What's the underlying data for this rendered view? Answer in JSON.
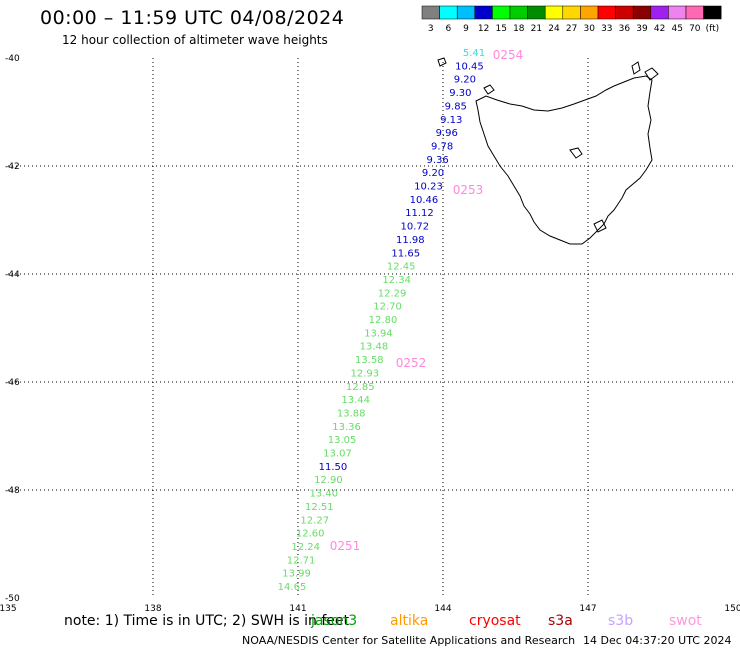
{
  "header": {
    "title": "00:00 – 11:59 UTC 04/08/2024",
    "subtitle": "12 hour collection of altimeter wave heights"
  },
  "legend": {
    "colors": [
      "#808080",
      "#00ffff",
      "#00bfff",
      "#0000cd",
      "#00ff00",
      "#00cd00",
      "#008b00",
      "#ffff00",
      "#ffd700",
      "#ffa500",
      "#ff0000",
      "#cd0000",
      "#8b0000",
      "#a020f0",
      "#ee82ee",
      "#ff69b4",
      "#000000"
    ],
    "labels": [
      "3",
      "6",
      "9",
      "12",
      "15",
      "18",
      "21",
      "24",
      "27",
      "30",
      "33",
      "36",
      "39",
      "42",
      "45",
      "70",
      "(ft)"
    ]
  },
  "axes": {
    "lat_labels": [
      "-40",
      "-42",
      "-44",
      "-46",
      "-48",
      "-50"
    ],
    "lon_labels": [
      "135",
      "138",
      "141",
      "144",
      "147",
      "150"
    ]
  },
  "track": {
    "blue_color": "#0000cd",
    "green_color": "#66dd66",
    "readings": [
      {
        "v": "5.41",
        "c": "cyan"
      },
      {
        "v": "10.45",
        "c": "blue"
      },
      {
        "v": "9.20",
        "c": "blue"
      },
      {
        "v": "9.30",
        "c": "blue"
      },
      {
        "v": "9.85",
        "c": "blue"
      },
      {
        "v": "9.13",
        "c": "blue"
      },
      {
        "v": "9.96",
        "c": "blue"
      },
      {
        "v": "9.78",
        "c": "blue"
      },
      {
        "v": "9.36",
        "c": "blue"
      },
      {
        "v": "9.20",
        "c": "blue"
      },
      {
        "v": "10.23",
        "c": "blue"
      },
      {
        "v": "10.46",
        "c": "blue"
      },
      {
        "v": "11.12",
        "c": "blue"
      },
      {
        "v": "10.72",
        "c": "blue"
      },
      {
        "v": "11.98",
        "c": "blue"
      },
      {
        "v": "11.65",
        "c": "blue"
      },
      {
        "v": "12.45",
        "c": "green"
      },
      {
        "v": "12.34",
        "c": "green"
      },
      {
        "v": "12.29",
        "c": "green"
      },
      {
        "v": "12.70",
        "c": "green"
      },
      {
        "v": "12.80",
        "c": "green"
      },
      {
        "v": "13.94",
        "c": "green"
      },
      {
        "v": "13.48",
        "c": "green"
      },
      {
        "v": "13.58",
        "c": "green"
      },
      {
        "v": "12.93",
        "c": "green"
      },
      {
        "v": "12.85",
        "c": "green"
      },
      {
        "v": "13.44",
        "c": "green"
      },
      {
        "v": "13.88",
        "c": "green"
      },
      {
        "v": "13.36",
        "c": "green"
      },
      {
        "v": "13.05",
        "c": "green"
      },
      {
        "v": "13.07",
        "c": "green"
      },
      {
        "v": "11.50",
        "c": "blue"
      },
      {
        "v": "12.90",
        "c": "green"
      },
      {
        "v": "13.40",
        "c": "green"
      },
      {
        "v": "12.51",
        "c": "green"
      },
      {
        "v": "12.27",
        "c": "green"
      },
      {
        "v": "12.60",
        "c": "green"
      },
      {
        "v": "12.24",
        "c": "green"
      },
      {
        "v": "12.71",
        "c": "green"
      },
      {
        "v": "13.99",
        "c": "green"
      },
      {
        "v": "14.65",
        "c": "green"
      }
    ],
    "times": [
      "0254",
      "0253",
      "0252",
      "0251"
    ],
    "time_color": "#ff88dd"
  },
  "footer": {
    "note": "note: 1) Time is in UTC; 2) SWH is in feet",
    "satellites": [
      {
        "name": "jason3",
        "color": "#00a000"
      },
      {
        "name": "altika",
        "color": "#ff9900"
      },
      {
        "name": "cryosat",
        "color": "#ff0000"
      },
      {
        "name": "s3a",
        "color": "#aa0000"
      },
      {
        "name": "s3b",
        "color": "#c8a0ff"
      },
      {
        "name": "swot",
        "color": "#ff99dd"
      }
    ],
    "credit": "NOAA/NESDIS Center for Satellite Applications and Research",
    "stamp": "14 Dec 04:37:20 UTC 2024"
  }
}
